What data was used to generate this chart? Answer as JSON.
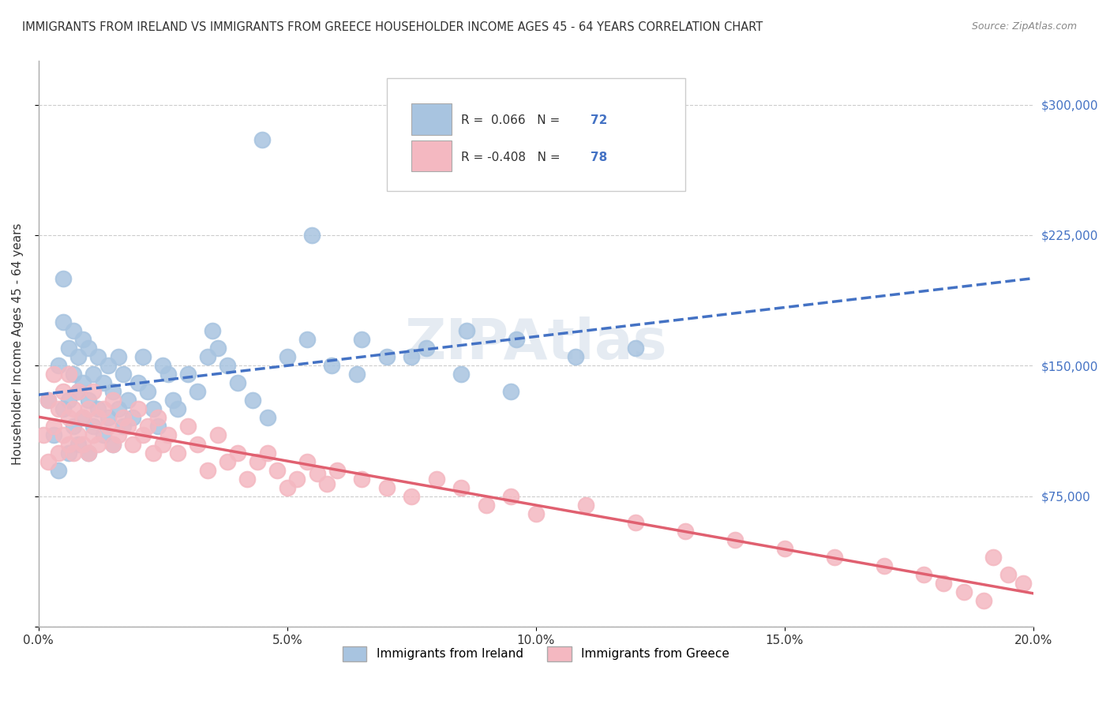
{
  "title": "IMMIGRANTS FROM IRELAND VS IMMIGRANTS FROM GREECE HOUSEHOLDER INCOME AGES 45 - 64 YEARS CORRELATION CHART",
  "source": "Source: ZipAtlas.com",
  "xlabel": "",
  "ylabel": "Householder Income Ages 45 - 64 years",
  "xlim": [
    0.0,
    0.2
  ],
  "ylim": [
    0,
    325000
  ],
  "yticks": [
    0,
    75000,
    150000,
    225000,
    300000
  ],
  "ytick_labels": [
    "",
    "$75,000",
    "$150,000",
    "$225,000",
    "$300,000"
  ],
  "xticks": [
    0.0,
    0.05,
    0.1,
    0.15,
    0.2
  ],
  "xtick_labels": [
    "0.0%",
    "5.0%",
    "10.0%",
    "15.0%",
    "20.0%"
  ],
  "legend_ireland": "Immigrants from Ireland",
  "legend_greece": "Immigrants from Greece",
  "ireland_R": 0.066,
  "ireland_N": 72,
  "greece_R": -0.408,
  "greece_N": 78,
  "ireland_color": "#a8c4e0",
  "ireland_line_color": "#4472c4",
  "greece_color": "#f4b8c1",
  "greece_line_color": "#e06070",
  "watermark": "ZIPAtlas",
  "grid_color": "#cccccc",
  "background_color": "#ffffff",
  "ireland_x": [
    0.002,
    0.003,
    0.004,
    0.004,
    0.005,
    0.005,
    0.005,
    0.006,
    0.006,
    0.006,
    0.007,
    0.007,
    0.007,
    0.008,
    0.008,
    0.008,
    0.009,
    0.009,
    0.009,
    0.01,
    0.01,
    0.01,
    0.011,
    0.011,
    0.012,
    0.012,
    0.013,
    0.013,
    0.014,
    0.014,
    0.015,
    0.015,
    0.016,
    0.016,
    0.017,
    0.017,
    0.018,
    0.019,
    0.02,
    0.021,
    0.022,
    0.023,
    0.024,
    0.025,
    0.026,
    0.027,
    0.028,
    0.03,
    0.032,
    0.034,
    0.036,
    0.038,
    0.04,
    0.043,
    0.046,
    0.05,
    0.054,
    0.059,
    0.064,
    0.07,
    0.078,
    0.086,
    0.096,
    0.108,
    0.12,
    0.035,
    0.045,
    0.055,
    0.065,
    0.075,
    0.085,
    0.095
  ],
  "ireland_y": [
    130000,
    110000,
    150000,
    90000,
    125000,
    175000,
    200000,
    100000,
    130000,
    160000,
    115000,
    145000,
    170000,
    105000,
    135000,
    155000,
    120000,
    140000,
    165000,
    100000,
    130000,
    160000,
    115000,
    145000,
    125000,
    155000,
    110000,
    140000,
    120000,
    150000,
    105000,
    135000,
    125000,
    155000,
    115000,
    145000,
    130000,
    120000,
    140000,
    155000,
    135000,
    125000,
    115000,
    150000,
    145000,
    130000,
    125000,
    145000,
    135000,
    155000,
    160000,
    150000,
    140000,
    130000,
    120000,
    155000,
    165000,
    150000,
    145000,
    155000,
    160000,
    170000,
    165000,
    155000,
    160000,
    170000,
    280000,
    225000,
    165000,
    155000,
    145000,
    135000
  ],
  "greece_x": [
    0.001,
    0.002,
    0.002,
    0.003,
    0.003,
    0.004,
    0.004,
    0.005,
    0.005,
    0.006,
    0.006,
    0.006,
    0.007,
    0.007,
    0.008,
    0.008,
    0.009,
    0.009,
    0.01,
    0.01,
    0.011,
    0.011,
    0.012,
    0.012,
    0.013,
    0.014,
    0.015,
    0.015,
    0.016,
    0.017,
    0.018,
    0.019,
    0.02,
    0.021,
    0.022,
    0.023,
    0.024,
    0.025,
    0.026,
    0.028,
    0.03,
    0.032,
    0.034,
    0.036,
    0.038,
    0.04,
    0.042,
    0.044,
    0.046,
    0.048,
    0.05,
    0.052,
    0.054,
    0.056,
    0.058,
    0.06,
    0.065,
    0.07,
    0.075,
    0.08,
    0.085,
    0.09,
    0.095,
    0.1,
    0.11,
    0.12,
    0.13,
    0.14,
    0.15,
    0.16,
    0.17,
    0.178,
    0.182,
    0.186,
    0.19,
    0.192,
    0.195,
    0.198
  ],
  "greece_y": [
    110000,
    130000,
    95000,
    115000,
    145000,
    100000,
    125000,
    110000,
    135000,
    105000,
    120000,
    145000,
    100000,
    125000,
    110000,
    135000,
    105000,
    120000,
    100000,
    125000,
    110000,
    135000,
    105000,
    120000,
    125000,
    115000,
    105000,
    130000,
    110000,
    120000,
    115000,
    105000,
    125000,
    110000,
    115000,
    100000,
    120000,
    105000,
    110000,
    100000,
    115000,
    105000,
    90000,
    110000,
    95000,
    100000,
    85000,
    95000,
    100000,
    90000,
    80000,
    85000,
    95000,
    88000,
    82000,
    90000,
    85000,
    80000,
    75000,
    85000,
    80000,
    70000,
    75000,
    65000,
    70000,
    60000,
    55000,
    50000,
    45000,
    40000,
    35000,
    30000,
    25000,
    20000,
    15000,
    40000,
    30000,
    25000
  ]
}
